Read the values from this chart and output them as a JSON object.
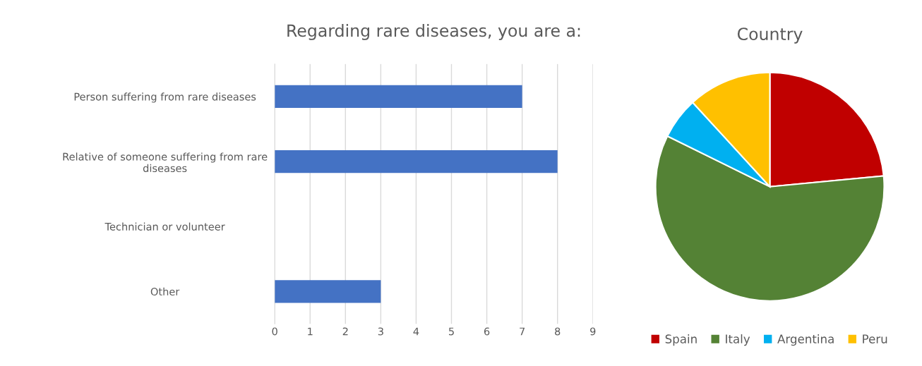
{
  "chart_data": [
    {
      "type": "bar",
      "orientation": "horizontal",
      "title": "Regarding rare diseases, you are a:",
      "categories": [
        "Person suffering from rare diseases",
        "Relative of someone suffering from rare\ndiseases",
        "Technician or volunteer",
        "Other"
      ],
      "values": [
        7,
        8,
        0,
        3
      ],
      "color": "#4472c4",
      "xlim": [
        0,
        9
      ],
      "xticks": [
        0,
        1,
        2,
        3,
        4,
        5,
        6,
        7,
        8,
        9
      ],
      "grid": "x",
      "legend": false
    },
    {
      "type": "pie",
      "title": "Country",
      "categories": [
        "Spain",
        "Italy",
        "Argentina",
        "Peru"
      ],
      "values": [
        23.5,
        58.8,
        5.9,
        11.8
      ],
      "colors": [
        "#c00000",
        "#548235",
        "#00b0f0",
        "#ffc000"
      ],
      "legend": "bottom"
    }
  ]
}
